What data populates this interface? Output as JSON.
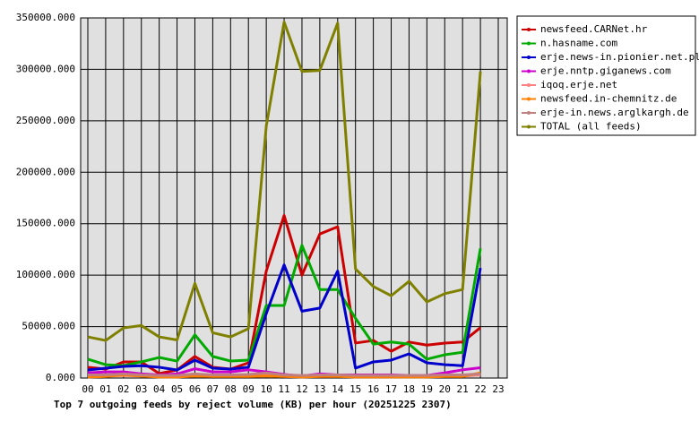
{
  "chart_data": {
    "type": "line",
    "title": "Top 7 outgoing feeds by reject volume (KB) per hour (20251225 2307)",
    "categories": [
      "00",
      "01",
      "02",
      "03",
      "04",
      "05",
      "06",
      "07",
      "08",
      "09",
      "10",
      "11",
      "12",
      "13",
      "14",
      "15",
      "16",
      "17",
      "18",
      "19",
      "20",
      "21",
      "22",
      "23"
    ],
    "ylim": [
      0,
      350000
    ],
    "yticks": [
      {
        "value": 0,
        "label": "0.000"
      },
      {
        "value": 50000,
        "label": "50000.000"
      },
      {
        "value": 100000,
        "label": "100000.000"
      },
      {
        "value": 150000,
        "label": "150000.000"
      },
      {
        "value": 200000,
        "label": "200000.000"
      },
      {
        "value": 250000,
        "label": "250000.000"
      },
      {
        "value": 300000,
        "label": "300000.000"
      },
      {
        "value": 350000,
        "label": "350000.000"
      }
    ],
    "grid": true,
    "legend": "right",
    "series": [
      {
        "name": "newsfeed.CARNet.hr",
        "color": "#cc0000",
        "values": [
          10500,
          8700,
          15700,
          15700,
          4400,
          7800,
          21000,
          10500,
          8700,
          14800,
          104000,
          158000,
          100000,
          140000,
          147000,
          34000,
          36500,
          26000,
          35000,
          32000,
          34000,
          35000,
          49000,
          null
        ]
      },
      {
        "name": "n.hasname.com",
        "color": "#00aa00",
        "values": [
          18300,
          13000,
          12000,
          15700,
          20000,
          16500,
          42000,
          21000,
          16500,
          17400,
          70500,
          70500,
          129000,
          86000,
          86000,
          58000,
          33000,
          35000,
          33000,
          18300,
          22600,
          25000,
          126000,
          null
        ]
      },
      {
        "name": "erje.news-in.pionier.net.pl",
        "color": "#0000cc",
        "values": [
          7800,
          9600,
          11300,
          12000,
          10500,
          7800,
          17400,
          9600,
          8700,
          10500,
          62700,
          110000,
          65000,
          68000,
          104000,
          9600,
          15700,
          17400,
          23500,
          14800,
          13000,
          12000,
          107000,
          null
        ]
      },
      {
        "name": "erje.nntp.giganews.com",
        "color": "#cc00cc",
        "values": [
          5000,
          6000,
          6000,
          4000,
          3000,
          4000,
          9000,
          6000,
          6000,
          8000,
          6000,
          3500,
          2000,
          4000,
          3000,
          3000,
          3000,
          3000,
          2500,
          2500,
          5000,
          8000,
          10000,
          null
        ]
      },
      {
        "name": "iqoq.erje.net",
        "color": "#ff8080",
        "values": [
          2000,
          2000,
          2500,
          2000,
          1500,
          1500,
          2500,
          2000,
          2000,
          2000,
          2500,
          2000,
          1500,
          2000,
          2000,
          1500,
          1500,
          1500,
          1500,
          1500,
          2000,
          2000,
          3000,
          null
        ]
      },
      {
        "name": "newsfeed.in-chemnitz.de",
        "color": "#ff8000",
        "values": [
          1000,
          1500,
          3000,
          2000,
          1000,
          1000,
          2000,
          1500,
          1500,
          1500,
          2000,
          1500,
          1000,
          1500,
          1500,
          1000,
          1000,
          1000,
          1000,
          1000,
          1500,
          1500,
          5000,
          null
        ]
      },
      {
        "name": "erje-in.news.arglkargh.de",
        "color": "#c08080",
        "values": [
          3000,
          3000,
          4000,
          3000,
          2500,
          2500,
          4000,
          3000,
          3000,
          3500,
          5000,
          3000,
          2500,
          3000,
          3000,
          2500,
          2500,
          2500,
          2500,
          2500,
          3000,
          3000,
          4000,
          null
        ]
      },
      {
        "name": "TOTAL (all feeds)",
        "color": "#808000",
        "values": [
          40000,
          36500,
          48700,
          51000,
          40000,
          37000,
          92000,
          44000,
          40000,
          48000,
          245000,
          346000,
          298000,
          299000,
          345000,
          106000,
          89000,
          80000,
          94000,
          74000,
          82000,
          86000,
          298000,
          null
        ]
      }
    ]
  }
}
